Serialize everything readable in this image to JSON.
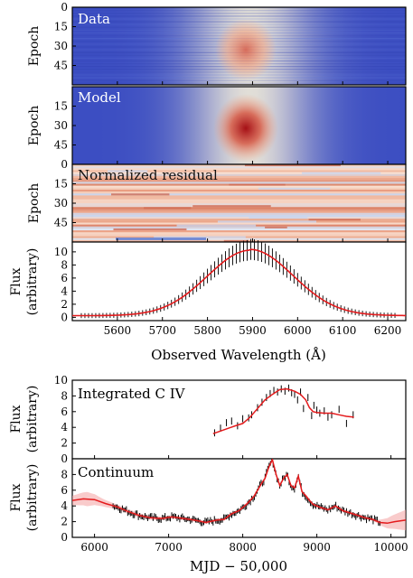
{
  "chart_data": [
    {
      "type": "heatmap",
      "panel_label": "Data",
      "ylabel": "Epoch",
      "yticks": [
        0,
        15,
        30,
        45
      ],
      "xlim": [
        5500,
        6240
      ],
      "ylim": [
        0,
        60
      ],
      "line_center": 5895,
      "line_sigma": 58,
      "colors": [
        "#3c4ec2",
        "#dcdddd",
        "#b40426"
      ]
    },
    {
      "type": "heatmap",
      "panel_label": "Model",
      "ylabel": "Epoch",
      "yticks": [
        15,
        30,
        45
      ],
      "xlim": [
        5500,
        6240
      ],
      "ylim": [
        0,
        60
      ],
      "line_center": 5895,
      "line_sigma": 58
    },
    {
      "type": "heatmap",
      "panel_label": "Normalized residual",
      "ylabel": "Epoch",
      "yticks": [
        0,
        15,
        30,
        45
      ],
      "xlim": [
        5500,
        6240
      ],
      "ylim": [
        0,
        60
      ]
    },
    {
      "type": "line",
      "ylabel": "Flux\n(arbitrary)",
      "xlabel": "Observed Wavelength (Å)",
      "xlim": [
        5500,
        6240
      ],
      "ylim": [
        -0.5,
        11.5
      ],
      "xticks": [
        5600,
        5700,
        5800,
        5900,
        6000,
        6100,
        6200
      ],
      "yticks": [
        0,
        2,
        4,
        6,
        8,
        10
      ],
      "peak": 10.0,
      "center": 5895,
      "colors": [
        "#e41a1c",
        "#000000"
      ]
    },
    {
      "type": "line",
      "panel_label": "Integrated C IV",
      "ylabel": "Flux\n(arbitrary)",
      "xlim": [
        5700,
        10200
      ],
      "ylim": [
        0,
        10
      ],
      "yticks": [
        0,
        2,
        4,
        6,
        8,
        10
      ],
      "model": {
        "x": [
          7600,
          7750,
          7900,
          8000,
          8100,
          8200,
          8300,
          8400,
          8500,
          8600,
          8700,
          8780,
          8850,
          8900,
          8950,
          9000,
          9100,
          9200,
          9300,
          9400,
          9500
        ],
        "y": [
          3.2,
          3.7,
          4.2,
          4.5,
          5.3,
          6.4,
          7.5,
          8.2,
          8.8,
          8.9,
          8.6,
          8.2,
          7.5,
          6.5,
          6.0,
          5.9,
          5.8,
          5.8,
          5.6,
          5.4,
          5.3
        ]
      },
      "points": {
        "x": [
          7620,
          7700,
          7780,
          7850,
          7930,
          8000,
          8080,
          8120,
          8200,
          8260,
          8320,
          8370,
          8420,
          8470,
          8520,
          8570,
          8620,
          8660,
          8700,
          8740,
          8780,
          8820,
          8880,
          8930,
          8960,
          9000,
          9040,
          9100,
          9150,
          9200,
          9300,
          9400,
          9490
        ],
        "y": [
          3.3,
          3.9,
          4.6,
          4.8,
          4.2,
          5.1,
          5.2,
          5.6,
          6.5,
          7.2,
          7.8,
          8.3,
          8.7,
          8.5,
          8.9,
          8.6,
          9.0,
          8.4,
          8.2,
          7.5,
          8.5,
          6.4,
          7.8,
          5.5,
          6.8,
          6.2,
          5.8,
          6.1,
          5.3,
          5.6,
          6.3,
          4.5,
          5.6
        ]
      }
    },
    {
      "type": "line",
      "panel_label": "Continuum",
      "ylabel": "Flux\n(arbitrary)",
      "xlabel": "MJD − 50,000",
      "xlim": [
        5700,
        10200
      ],
      "ylim": [
        0,
        10
      ],
      "xticks": [
        6000,
        7000,
        8000,
        9000,
        10000
      ],
      "yticks": [
        0,
        2,
        4,
        6,
        8
      ],
      "model": {
        "x": [
          5700,
          5850,
          6000,
          6150,
          6300,
          6450,
          6600,
          6750,
          6900,
          7050,
          7200,
          7350,
          7500,
          7650,
          7750,
          7850,
          7950,
          8050,
          8150,
          8250,
          8300,
          8350,
          8400,
          8450,
          8500,
          8550,
          8600,
          8650,
          8700,
          8750,
          8800,
          8850,
          8900,
          8950,
          9050,
          9150,
          9250,
          9350,
          9450,
          9550,
          9650,
          9750,
          9850,
          9950,
          10050,
          10200
        ],
        "y": [
          4.7,
          4.9,
          4.8,
          4.3,
          3.9,
          3.3,
          2.8,
          2.5,
          2.4,
          2.6,
          2.4,
          2.2,
          1.9,
          2.2,
          2.3,
          3.0,
          3.4,
          4.2,
          5.2,
          6.8,
          7.5,
          8.9,
          9.9,
          8.0,
          6.6,
          7.5,
          8.0,
          6.6,
          6.3,
          7.8,
          5.8,
          5.3,
          4.7,
          4.2,
          3.8,
          3.5,
          4.0,
          3.4,
          3.1,
          2.8,
          2.5,
          2.3,
          1.9,
          1.8,
          2.0,
          2.2
        ]
      },
      "band": {
        "x": [
          5700,
          5900,
          6100,
          6300,
          7500,
          9800,
          10000,
          10200
        ],
        "half_width": [
          0.6,
          0.9,
          0.5,
          0.3,
          0.2,
          0.2,
          0.8,
          1.3
        ]
      },
      "points_range": [
        6250,
        9850
      ]
    }
  ]
}
